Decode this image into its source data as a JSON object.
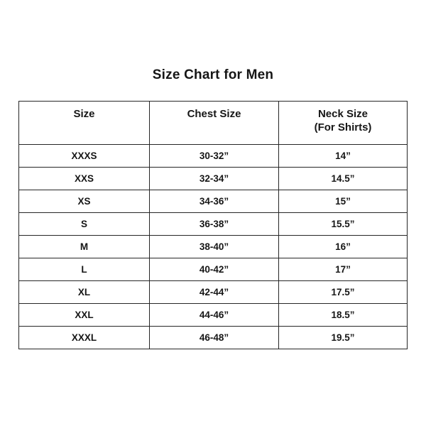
{
  "title": "Size Chart for Men",
  "table": {
    "headers": [
      {
        "lines": [
          "Size"
        ]
      },
      {
        "lines": [
          "Chest Size"
        ]
      },
      {
        "lines": [
          "Neck Size",
          "(For Shirts)"
        ]
      }
    ],
    "rows": [
      {
        "size": "XXXS",
        "chest": "30-32”",
        "neck": "14”"
      },
      {
        "size": "XXS",
        "chest": "32-34”",
        "neck": "14.5”"
      },
      {
        "size": "XS",
        "chest": "34-36”",
        "neck": "15”"
      },
      {
        "size": "S",
        "chest": "36-38”",
        "neck": "15.5”"
      },
      {
        "size": "M",
        "chest": "38-40”",
        "neck": "16”"
      },
      {
        "size": "L",
        "chest": "40-42”",
        "neck": "17”"
      },
      {
        "size": "XL",
        "chest": "42-44”",
        "neck": "17.5”"
      },
      {
        "size": "XXL",
        "chest": "44-46”",
        "neck": "18.5”"
      },
      {
        "size": "XXXL",
        "chest": "46-48”",
        "neck": "19.5”"
      }
    ]
  }
}
